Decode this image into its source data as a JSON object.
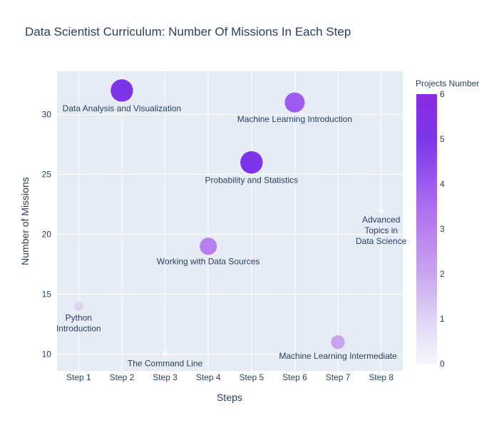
{
  "chart_data": {
    "type": "scatter",
    "title": "Data Scientist Curriculum: Number Of Missions In Each Step",
    "xlabel": "Steps",
    "ylabel": "Number of Missions",
    "categories": [
      "Step 1",
      "Step 2",
      "Step 3",
      "Step 4",
      "Step 5",
      "Step 6",
      "Step 7",
      "Step 8"
    ],
    "ylim": [
      8.6,
      33.6
    ],
    "yticks": [
      10,
      15,
      20,
      25,
      30
    ],
    "grid": true,
    "points": [
      {
        "x": "Step 1",
        "y": 14,
        "projects": 1,
        "label": "Python<br>Introduction"
      },
      {
        "x": "Step 2",
        "y": 32,
        "projects": 5,
        "label": "Data Analysis and Visualization"
      },
      {
        "x": "Step 3",
        "y": 10,
        "projects": 0,
        "label": "The Command Line"
      },
      {
        "x": "Step 4",
        "y": 19,
        "projects": 3,
        "label": "Working with Data Sources"
      },
      {
        "x": "Step 5",
        "y": 26,
        "projects": 5,
        "label": "Probability and Statistics"
      },
      {
        "x": "Step 6",
        "y": 31,
        "projects": 4,
        "label": "Machine Learning Introduction"
      },
      {
        "x": "Step 7",
        "y": 11,
        "projects": 2,
        "label": "Machine Learning Intermediate"
      },
      {
        "x": "Step 8",
        "y": 22,
        "projects": 0,
        "label": "Advanced<br>Topics in<br>Data Science"
      }
    ],
    "colorbar": {
      "title": "Projects Number",
      "min": 0,
      "max": 6,
      "ticks": [
        0,
        1,
        2,
        3,
        4,
        5,
        6
      ],
      "colors": [
        "#f7f6fc",
        "#dfd4f4",
        "#c8a6ee",
        "#b77ff0",
        "#9d5bf1",
        "#7c35e8",
        "#8a2be2"
      ]
    },
    "colors": {
      "plot_bg": "#e5ecf6",
      "grid": "#ffffff",
      "text": "#2a3f5f"
    }
  }
}
